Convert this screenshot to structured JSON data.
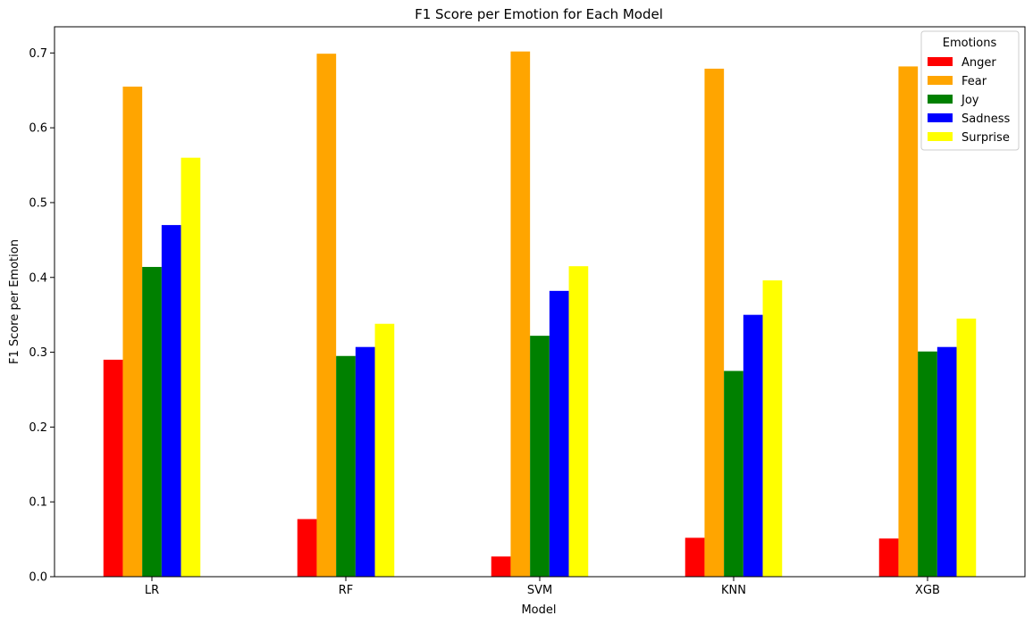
{
  "chart_data": {
    "type": "bar",
    "title": "F1 Score per Emotion for Each Model",
    "xlabel": "Model",
    "ylabel": "F1 Score per Emotion",
    "categories": [
      "LR",
      "RF",
      "SVM",
      "KNN",
      "XGB"
    ],
    "ylim": [
      0,
      0.735
    ],
    "yticks": [
      "0.0",
      "0.1",
      "0.2",
      "0.3",
      "0.4",
      "0.5",
      "0.6",
      "0.7"
    ],
    "grid": false,
    "legend": {
      "title": "Emotions",
      "placement": "top-right"
    },
    "series": [
      {
        "name": "Anger",
        "color": "#ff0000",
        "values": [
          0.29,
          0.077,
          0.027,
          0.052,
          0.051
        ]
      },
      {
        "name": "Fear",
        "color": "#ffa500",
        "values": [
          0.655,
          0.699,
          0.702,
          0.679,
          0.682
        ]
      },
      {
        "name": "Joy",
        "color": "#008000",
        "values": [
          0.414,
          0.295,
          0.322,
          0.275,
          0.301
        ]
      },
      {
        "name": "Sadness",
        "color": "#0000ff",
        "values": [
          0.47,
          0.307,
          0.382,
          0.35,
          0.307
        ]
      },
      {
        "name": "Surprise",
        "color": "#ffff00",
        "values": [
          0.56,
          0.338,
          0.415,
          0.396,
          0.345
        ]
      }
    ]
  }
}
